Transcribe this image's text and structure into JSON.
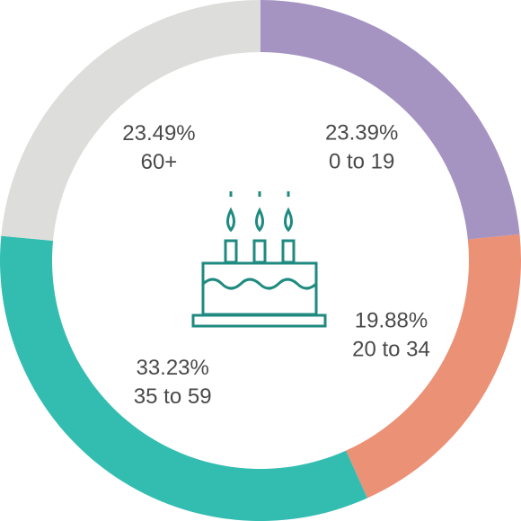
{
  "chart_data": {
    "type": "donut",
    "categories": [
      "0 to 19",
      "20 to 34",
      "35 to 59",
      "60+"
    ],
    "values": [
      23.39,
      19.88,
      33.23,
      23.49
    ],
    "value_labels": [
      "23.39%",
      "19.88%",
      "33.23%",
      "23.49%"
    ],
    "colors": [
      "#a593c2",
      "#eb9176",
      "#33bdb0",
      "#dddddb"
    ]
  }
}
